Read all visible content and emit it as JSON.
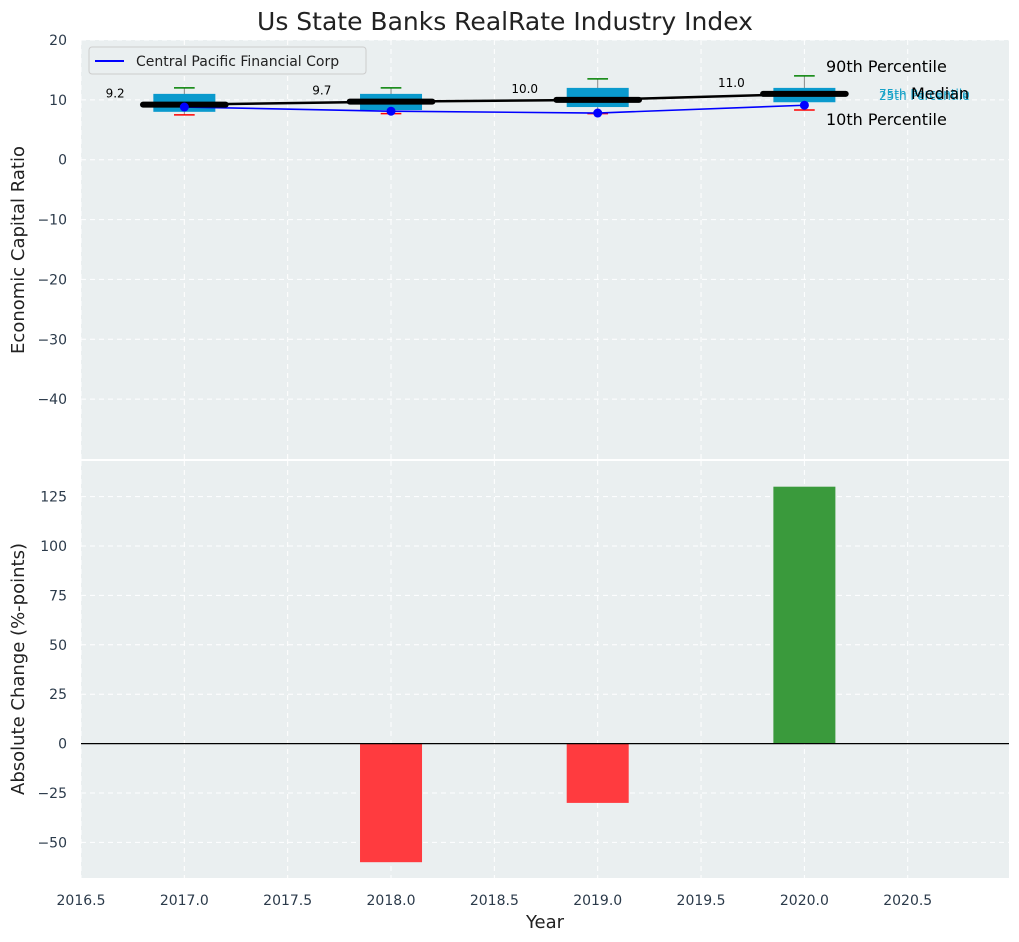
{
  "chart_data": {
    "title": "Us State Banks RealRate Industry Index",
    "type": "box",
    "top": {
      "ylabel": "Economic Capital Ratio",
      "ylim": [
        -50,
        20
      ],
      "yticks": [
        20,
        10,
        0,
        -10,
        -20,
        -30,
        -40
      ],
      "ytick_labels": [
        "20",
        "10",
        "0",
        "−10",
        "−20",
        "−30",
        "−40"
      ],
      "legend_label": "Central Pacific Financial Corp",
      "legend_position": "top-left",
      "years": [
        2017,
        2018,
        2019,
        2020
      ],
      "p10": [
        7.5,
        7.7,
        7.7,
        8.3
      ],
      "q1": [
        8.0,
        8.3,
        8.8,
        9.6
      ],
      "median": [
        9.2,
        9.7,
        10.0,
        11.0
      ],
      "q3": [
        11.0,
        11.0,
        12.0,
        12.0
      ],
      "p90": [
        12.0,
        12.0,
        13.5,
        14.0
      ],
      "median_labels": [
        "9.2",
        "9.7",
        "10.0",
        "11.0"
      ],
      "company": [
        8.8,
        8.1,
        7.8,
        9.1
      ],
      "annotations": {
        "p90": "90th Percentile",
        "median": "Median",
        "p10": "10th Percentile",
        "q3": "75th Percentile",
        "q1": "25th Percentile"
      }
    },
    "bottom": {
      "type": "bar",
      "ylabel": "Absolute Change (%-points)",
      "ylim": [
        -68,
        143
      ],
      "yticks": [
        125,
        100,
        75,
        50,
        25,
        0,
        -25,
        -50
      ],
      "ytick_labels": [
        "125",
        "100",
        "75",
        "50",
        "25",
        "0",
        "−25",
        "−50"
      ],
      "x": [
        2017,
        2018,
        2019,
        2020
      ],
      "values": [
        0,
        -60,
        -30,
        130
      ],
      "positive_color": "#3a9a3c",
      "negative_color": "#ff3b3f"
    },
    "xaxis": {
      "xlabel": "Year",
      "xlim": [
        2016.5,
        2020.99
      ],
      "ticks": [
        2016.5,
        2017.0,
        2017.5,
        2018.0,
        2018.5,
        2019.0,
        2019.5,
        2020.0,
        2020.5
      ],
      "tick_labels": [
        "2016.5",
        "2017.0",
        "2017.5",
        "2018.0",
        "2018.5",
        "2019.0",
        "2019.5",
        "2020.0",
        "2020.5"
      ]
    },
    "colors": {
      "background": "#eaeff0",
      "box": "#0a9acd",
      "median_line": "#000000",
      "company_line": "#0000ff",
      "whisker_top": "#008000",
      "whisker_bottom": "#ff0000",
      "grid": "#ffffff"
    }
  }
}
